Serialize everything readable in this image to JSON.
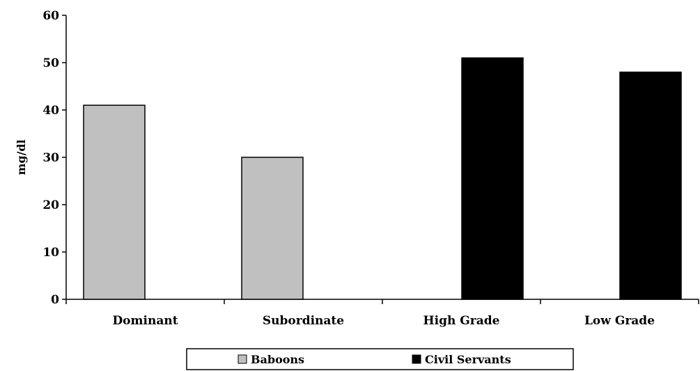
{
  "chart_data": {
    "type": "bar",
    "title": "",
    "xlabel": "",
    "ylabel": "mg/dl",
    "categories": [
      "Dominant",
      "Subordinate",
      "High Grade",
      "Low Grade"
    ],
    "series": [
      {
        "name": "Baboons",
        "color": "#c0c0c0",
        "values": [
          41,
          30,
          null,
          null
        ]
      },
      {
        "name": "Civil Servants",
        "color": "#000000",
        "values": [
          null,
          null,
          51,
          48
        ]
      }
    ],
    "ylim": [
      0,
      60
    ],
    "yticks": [
      "0",
      "10",
      "20",
      "30",
      "40",
      "50",
      "60"
    ],
    "grid": false,
    "legend_position": "bottom"
  }
}
